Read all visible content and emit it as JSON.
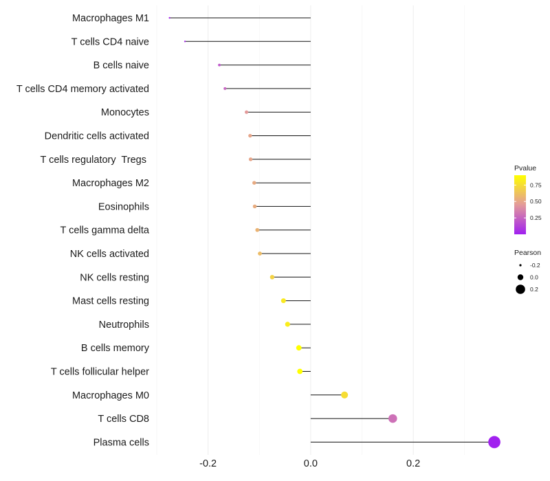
{
  "chart_data": {
    "type": "lollipop",
    "categories": [
      "Macrophages M1",
      "T cells CD4 naive",
      "B cells naive",
      "T cells CD4 memory activated",
      "Monocytes",
      "Dendritic cells activated",
      "T cells regulatory  Tregs ",
      "Macrophages M2",
      "Eosinophils",
      "T cells gamma delta",
      "NK cells activated",
      "NK cells resting",
      "Mast cells resting",
      "Neutrophils",
      "B cells memory",
      "T cells follicular helper",
      "Macrophages M0",
      "T cells CD8",
      "Plasma cells"
    ],
    "pearson": [
      -0.275,
      -0.245,
      -0.178,
      -0.167,
      -0.125,
      -0.118,
      -0.117,
      -0.11,
      -0.109,
      -0.104,
      -0.099,
      -0.075,
      -0.053,
      -0.045,
      -0.023,
      -0.021,
      0.066,
      0.16,
      0.358
    ],
    "pvalue": [
      0.02,
      0.05,
      0.2,
      0.25,
      0.45,
      0.5,
      0.5,
      0.52,
      0.53,
      0.56,
      0.6,
      0.7,
      0.8,
      0.82,
      0.92,
      0.92,
      0.75,
      0.3,
      0.005
    ],
    "xaxis": {
      "ticks": [
        -0.2,
        0.0,
        0.2
      ],
      "tick_labels": [
        "-0.2",
        "0.0",
        "0.2"
      ],
      "xlim": [
        -0.3,
        0.37
      ]
    },
    "xlabel": "",
    "ylabel": "",
    "grid": true,
    "legend_color": {
      "title": "Pvalue",
      "range": [
        0.0,
        0.9
      ],
      "ticks": [
        0.75,
        0.5,
        0.25
      ],
      "tick_labels": [
        "0.75",
        "0.50",
        "0.25"
      ],
      "low_color": "#a020f0",
      "high_color": "#ffff00"
    },
    "legend_size": {
      "title": "Pearson",
      "ticks": [
        -0.2,
        0.0,
        0.2
      ],
      "tick_labels": [
        "-0.2",
        "0.0",
        "0.2"
      ]
    },
    "legend_position": "right"
  }
}
